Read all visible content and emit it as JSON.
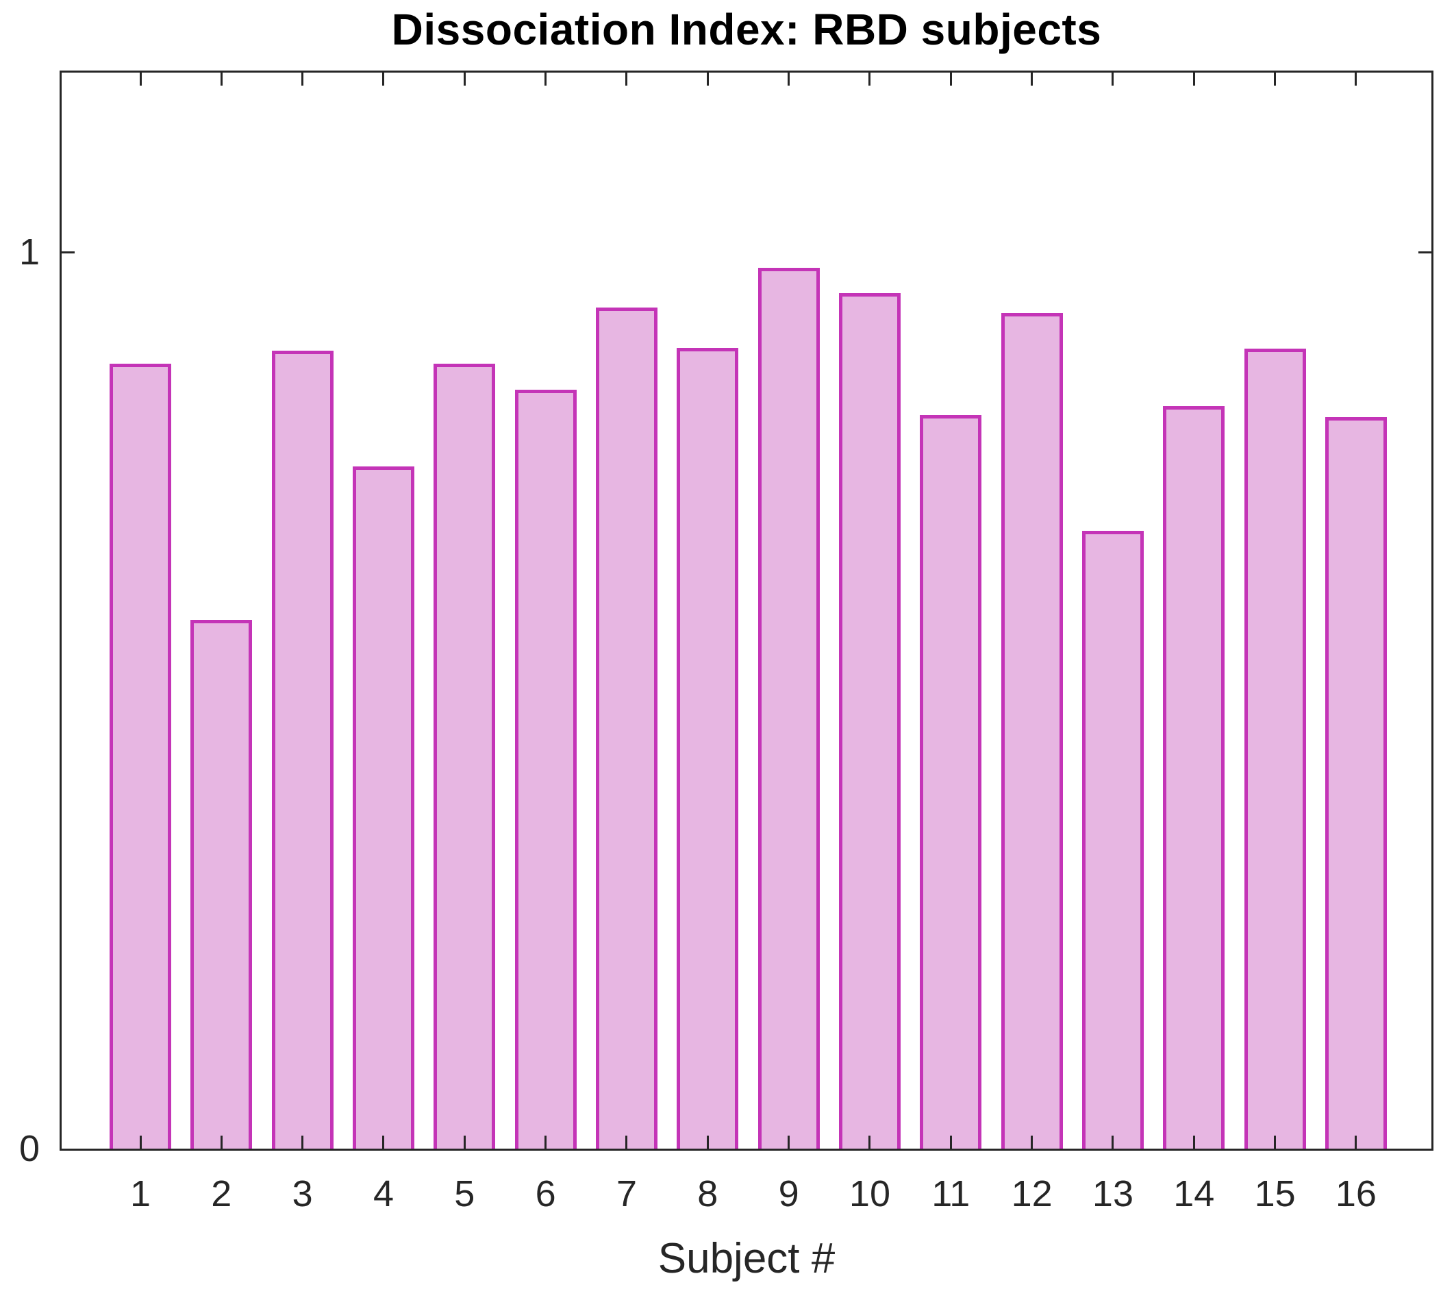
{
  "chart_data": {
    "type": "bar",
    "title": "Dissociation Index: RBD subjects",
    "xlabel": "Subject #",
    "ylabel": "",
    "categories": [
      "1",
      "2",
      "3",
      "4",
      "5",
      "6",
      "7",
      "8",
      "9",
      "10",
      "11",
      "12",
      "13",
      "14",
      "15",
      "16"
    ],
    "values": [
      0.875,
      0.59,
      0.89,
      0.761,
      0.875,
      0.846,
      0.938,
      0.893,
      0.982,
      0.954,
      0.818,
      0.932,
      0.689,
      0.828,
      0.892,
      0.816
    ],
    "ylim": [
      0,
      1.2
    ],
    "yticks": [
      {
        "value": 0,
        "label": "0"
      },
      {
        "value": 1,
        "label": "1"
      }
    ],
    "grid": false,
    "legend": null,
    "colors": {
      "bar_fill": "#e7b6e2",
      "bar_edge": "#c434b7",
      "axis": "#262626",
      "title_color": "#000000",
      "tick_label_color": "#262626"
    }
  }
}
